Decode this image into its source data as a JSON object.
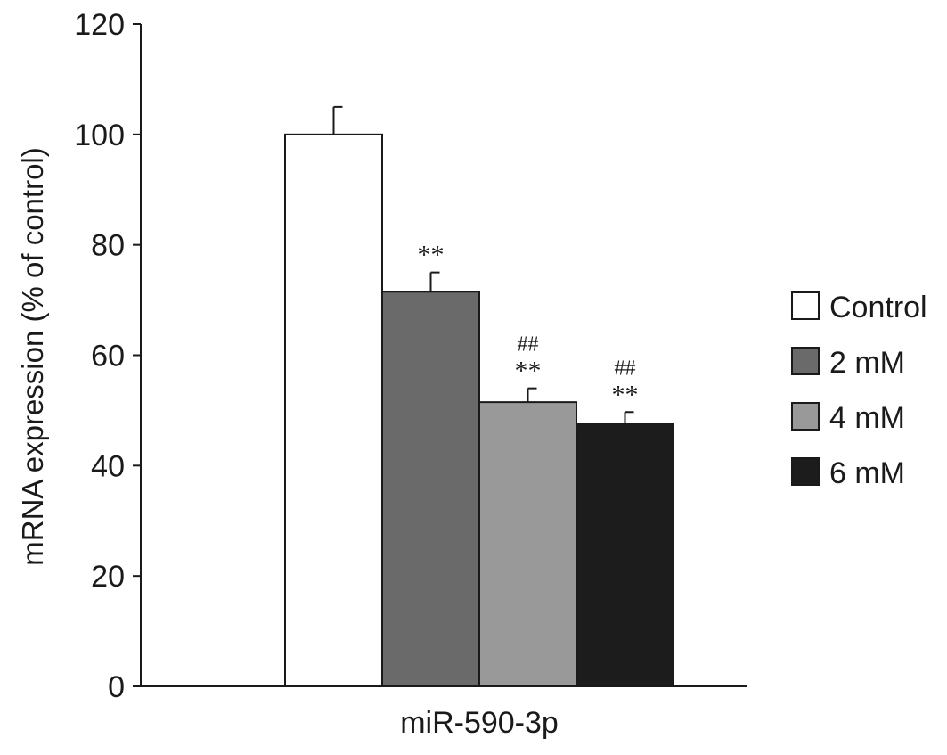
{
  "chart_data": {
    "type": "bar",
    "title": "",
    "xlabel": "",
    "ylabel": "mRNA expression (% of control)",
    "ylim": [
      0,
      120
    ],
    "yticks": [
      0,
      20,
      40,
      60,
      80,
      100,
      120
    ],
    "categories": [
      "miR-590-3p"
    ],
    "grid": false,
    "legend_position": "right",
    "series": [
      {
        "name": "Control",
        "values": [
          100
        ],
        "error": [
          5
        ],
        "color": "#ffffff",
        "annotation": []
      },
      {
        "name": "2 mM",
        "values": [
          71.5
        ],
        "error": [
          3.5
        ],
        "color": "#6a6a6a",
        "annotation": [
          "**"
        ]
      },
      {
        "name": "4 mM",
        "values": [
          51.5
        ],
        "error": [
          2.5
        ],
        "color": "#999999",
        "annotation": [
          "##",
          "**"
        ]
      },
      {
        "name": "6 mM",
        "values": [
          47.5
        ],
        "error": [
          2.2
        ],
        "color": "#1c1c1c",
        "annotation": [
          "##",
          "**"
        ]
      }
    ]
  }
}
